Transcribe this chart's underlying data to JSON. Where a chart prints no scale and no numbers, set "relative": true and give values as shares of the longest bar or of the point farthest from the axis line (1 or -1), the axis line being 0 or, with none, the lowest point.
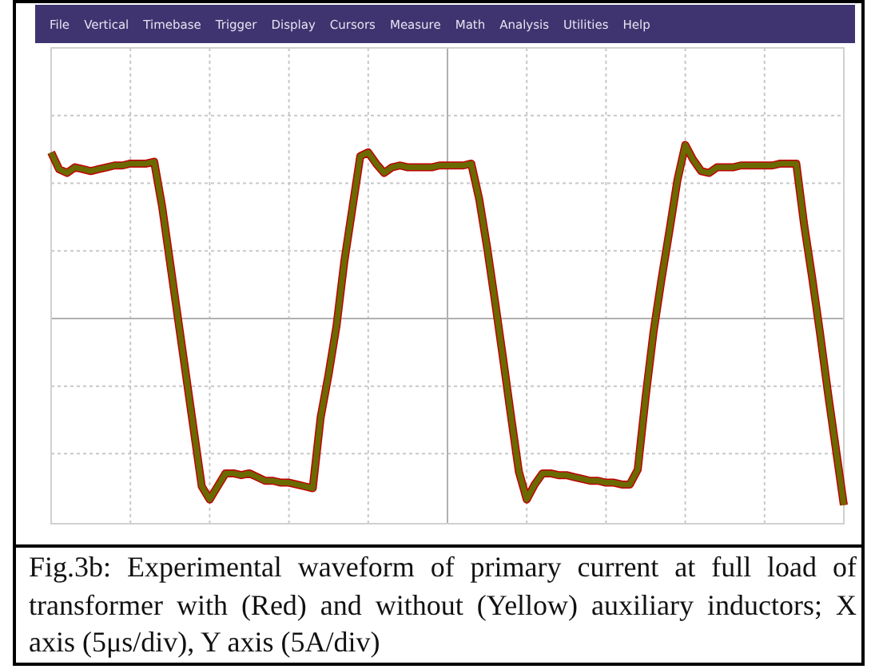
{
  "chart_data": {
    "type": "line",
    "relative": true,
    "grid": true,
    "title": "Fig.3b: Experimental waveform of primary current at full load of transformer with (Red) and without (Yellow) auxiliary inductors; X axis (5μs/div), Y axis (5A/div)",
    "annotations": [
      "File",
      "Vertical",
      "Timebase",
      "Trigger",
      "Display",
      "Cursors",
      "Measure",
      "Math",
      "Analysis",
      "Utilities",
      "Help"
    ],
    "categories": [
      null,
      null,
      null,
      null,
      null,
      null,
      null,
      null,
      null,
      null,
      null,
      null,
      null,
      null,
      null,
      null,
      null,
      null,
      null,
      null,
      null,
      null,
      null,
      null,
      null,
      null,
      null,
      null,
      null,
      null,
      null,
      null,
      null,
      null,
      null,
      null,
      null,
      null,
      null,
      null,
      null,
      null,
      null,
      null,
      null,
      null,
      null,
      null,
      null,
      null,
      null,
      null,
      null,
      null,
      null,
      null,
      null,
      null,
      null,
      null,
      null,
      null,
      null,
      null,
      null,
      null,
      null,
      null,
      null,
      null,
      null,
      null,
      null,
      null,
      null,
      null,
      null,
      null,
      null,
      null,
      null,
      null,
      null,
      null,
      null,
      null,
      null,
      null,
      null,
      null,
      null,
      null,
      null,
      null,
      null,
      null,
      null,
      null,
      null,
      null,
      null
    ],
    "series": [
      {
        "color": "#c00000",
        "values": [
          0.89,
          0.8,
          0.78,
          0.81,
          0.8,
          0.79,
          0.8,
          0.81,
          0.82,
          0.82,
          0.83,
          0.83,
          0.83,
          0.84,
          0.6,
          0.3,
          0,
          -0.3,
          -0.6,
          -0.9,
          -0.97,
          -0.9,
          -0.83,
          -0.83,
          -0.84,
          -0.83,
          -0.85,
          -0.87,
          -0.87,
          -0.88,
          -0.88,
          -0.89,
          -0.9,
          -0.91,
          -0.53,
          -0.3,
          -0.04,
          0.31,
          0.59,
          0.87,
          0.89,
          0.83,
          0.78,
          0.81,
          0.82,
          0.81,
          0.81,
          0.81,
          0.81,
          0.82,
          0.82,
          0.82,
          0.82,
          0.83,
          0.64,
          0.38,
          0.09,
          -0.21,
          -0.52,
          -0.82,
          -0.97,
          -0.89,
          -0.83,
          -0.83,
          -0.84,
          -0.84,
          -0.85,
          -0.86,
          -0.87,
          -0.87,
          -0.88,
          -0.88,
          -0.89,
          -0.89,
          -0.81,
          -0.42,
          -0.07,
          0.21,
          0.47,
          0.74,
          0.93,
          0.85,
          0.79,
          0.78,
          0.81,
          0.81,
          0.81,
          0.82,
          0.82,
          0.82,
          0.82,
          0.82,
          0.83,
          0.83,
          0.83,
          0.5,
          0.22,
          -0.08,
          -0.4,
          -0.7,
          -1
        ]
      },
      {
        "color": "#6b6a00",
        "values": [
          0.89,
          0.8,
          0.78,
          0.81,
          0.8,
          0.79,
          0.8,
          0.81,
          0.82,
          0.82,
          0.83,
          0.83,
          0.83,
          0.84,
          0.6,
          0.3,
          0,
          -0.3,
          -0.6,
          -0.9,
          -0.97,
          -0.9,
          -0.83,
          -0.83,
          -0.84,
          -0.83,
          -0.85,
          -0.87,
          -0.87,
          -0.88,
          -0.88,
          -0.89,
          -0.9,
          -0.91,
          -0.53,
          -0.3,
          -0.04,
          0.31,
          0.59,
          0.87,
          0.89,
          0.83,
          0.78,
          0.81,
          0.82,
          0.81,
          0.81,
          0.81,
          0.81,
          0.82,
          0.82,
          0.82,
          0.82,
          0.83,
          0.64,
          0.38,
          0.09,
          -0.21,
          -0.52,
          -0.82,
          -0.97,
          -0.89,
          -0.83,
          -0.83,
          -0.84,
          -0.84,
          -0.85,
          -0.86,
          -0.87,
          -0.87,
          -0.88,
          -0.88,
          -0.89,
          -0.89,
          -0.81,
          -0.42,
          -0.07,
          0.21,
          0.47,
          0.74,
          0.93,
          0.85,
          0.79,
          0.78,
          0.81,
          0.81,
          0.81,
          0.82,
          0.82,
          0.82,
          0.82,
          0.82,
          0.83,
          0.83,
          0.83,
          0.5,
          0.22,
          -0.08,
          -0.4,
          -0.7,
          -1
        ]
      }
    ]
  }
}
